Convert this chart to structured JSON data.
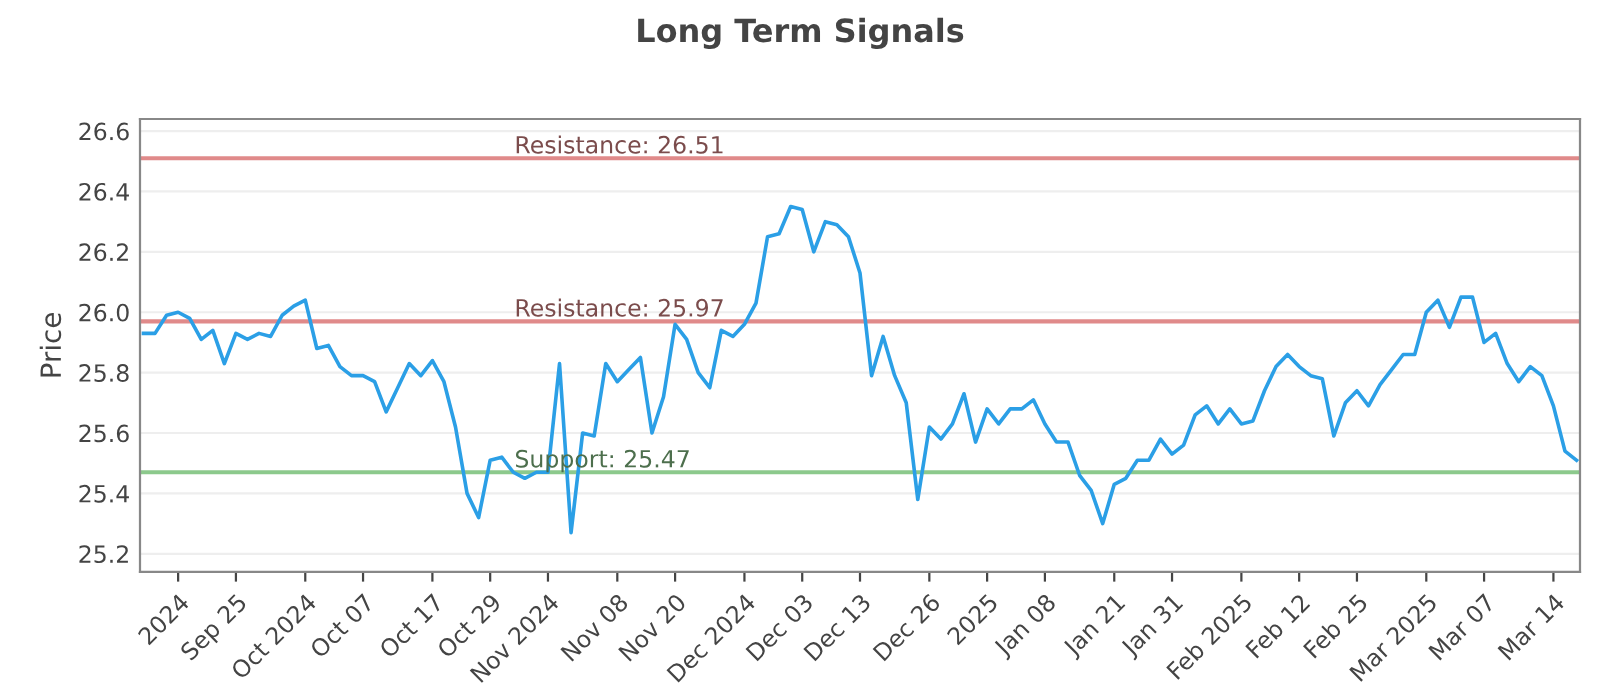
{
  "chart_data": {
    "type": "line",
    "title": "Long Term Signals",
    "ylabel": "Price",
    "categories": [
      null,
      null,
      null,
      "2024",
      null,
      null,
      null,
      null,
      "Sep 25",
      null,
      null,
      null,
      null,
      null,
      "Oct 2024",
      null,
      null,
      null,
      null,
      "Oct 07",
      null,
      null,
      null,
      null,
      null,
      "Oct 17",
      null,
      null,
      null,
      null,
      "Oct 29",
      null,
      null,
      null,
      null,
      "Nov 2024",
      null,
      null,
      null,
      null,
      null,
      "Nov 08",
      null,
      null,
      null,
      null,
      "Nov 20",
      null,
      null,
      null,
      null,
      null,
      "Dec 2024",
      null,
      null,
      null,
      null,
      "Dec 03",
      null,
      null,
      null,
      null,
      "Dec 13",
      null,
      null,
      null,
      null,
      null,
      "Dec 26",
      null,
      null,
      null,
      null,
      "2025",
      null,
      null,
      null,
      null,
      "Jan 08",
      null,
      null,
      null,
      null,
      null,
      "Jan 21",
      null,
      null,
      null,
      null,
      "Jan 31",
      null,
      null,
      null,
      null,
      null,
      "Feb 2025",
      null,
      null,
      null,
      null,
      "Feb 12",
      null,
      null,
      null,
      null,
      "Feb 25",
      null,
      null,
      null,
      null,
      null,
      "Mar 2025",
      null,
      null,
      null,
      null,
      "Mar 07",
      null,
      null,
      null,
      null,
      null,
      "Mar 14",
      null,
      null
    ],
    "series": [
      {
        "color": "#2b9fe6",
        "values": [
          25.93,
          25.93,
          25.99,
          26.0,
          25.98,
          25.91,
          25.94,
          25.83,
          25.93,
          25.91,
          25.93,
          25.92,
          25.99,
          26.02,
          26.04,
          25.88,
          25.89,
          25.82,
          25.79,
          25.79,
          25.77,
          25.67,
          25.75,
          25.83,
          25.79,
          25.84,
          25.77,
          25.62,
          25.4,
          25.32,
          25.51,
          25.52,
          25.47,
          25.45,
          25.47,
          25.47,
          25.83,
          25.27,
          25.6,
          25.59,
          25.83,
          25.77,
          25.81,
          25.85,
          25.6,
          25.72,
          25.96,
          25.91,
          25.8,
          25.75,
          25.94,
          25.92,
          25.96,
          26.03,
          26.25,
          26.26,
          26.35,
          26.34,
          26.2,
          26.3,
          26.29,
          26.25,
          26.13,
          25.79,
          25.92,
          25.79,
          25.7,
          25.38,
          25.62,
          25.58,
          25.63,
          25.73,
          25.57,
          25.68,
          25.63,
          25.68,
          25.68,
          25.71,
          25.63,
          25.57,
          25.57,
          25.46,
          25.41,
          25.3,
          25.43,
          25.45,
          25.51,
          25.51,
          25.58,
          25.53,
          25.56,
          25.66,
          25.69,
          25.63,
          25.68,
          25.63,
          25.64,
          25.74,
          25.82,
          25.86,
          25.82,
          25.79,
          25.78,
          25.59,
          25.7,
          25.74,
          25.69,
          25.76,
          25.81,
          25.86,
          25.86,
          26.0,
          26.04,
          25.95,
          26.05,
          26.05,
          25.9,
          25.93,
          25.83,
          25.77,
          25.82,
          25.79,
          25.69,
          25.54,
          25.51
        ]
      }
    ],
    "ylim": [
      25.14,
      26.64
    ],
    "yticks": [
      {
        "value": 25.2,
        "label": "25.2"
      },
      {
        "value": 25.4,
        "label": "25.4"
      },
      {
        "value": 25.6,
        "label": "25.6"
      },
      {
        "value": 25.8,
        "label": "25.8"
      },
      {
        "value": 26.0,
        "label": "26.0"
      },
      {
        "value": 26.2,
        "label": "26.2"
      },
      {
        "value": 26.4,
        "label": "26.4"
      },
      {
        "value": 26.6,
        "label": "26.6"
      }
    ],
    "grid": "y",
    "marker": "none",
    "line_style": "solid",
    "ref_lines": [
      {
        "axis": "y",
        "value": 26.51,
        "label": "Resistance: 26.51",
        "color": "#e08a8a"
      },
      {
        "axis": "y",
        "value": 25.97,
        "label": "Resistance: 25.97",
        "color": "#e08a8a"
      },
      {
        "axis": "y",
        "value": 25.47,
        "label": "Support: 25.47",
        "color": "#8cc98c"
      }
    ]
  }
}
